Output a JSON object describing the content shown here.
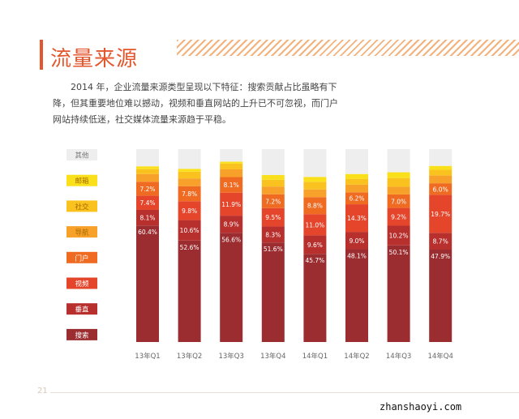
{
  "page": {
    "title": "流量来源",
    "description": "2014 年，企业流量来源类型呈现以下特征：搜索贡献占比虽略有下降，但其重要地位难以撼动，视频和垂直网站的上升已不可忽视，而门户网站持续低迷，社交媒体流量来源趋于平稳。",
    "page_number": "21",
    "watermark": "zhanshaoyi.com"
  },
  "chart_data": {
    "type": "bar",
    "stacked": true,
    "percent_stacked": true,
    "categories": [
      "13年Q1",
      "13年Q2",
      "13年Q3",
      "13年Q4",
      "14年Q1",
      "14年Q2",
      "14年Q3",
      "14年Q4"
    ],
    "series": [
      {
        "name": "搜索",
        "color": "#9b2d30",
        "values": [
          60.4,
          52.6,
          56.6,
          51.6,
          45.7,
          48.1,
          50.1,
          47.9
        ],
        "labels": [
          "60.4%",
          "52.6%",
          "56.6%",
          "51.6%",
          "45.7%",
          "48.1%",
          "50.1%",
          "47.9%"
        ]
      },
      {
        "name": "垂直",
        "color": "#b8302d",
        "values": [
          8.1,
          10.6,
          8.9,
          8.3,
          9.6,
          9.0,
          10.2,
          8.7
        ],
        "labels": [
          "8.1%",
          "10.6%",
          "8.9%",
          "8.3%",
          "9.6%",
          "9.0%",
          "10.2%",
          "8.7%"
        ]
      },
      {
        "name": "视频",
        "color": "#e4452b",
        "values": [
          7.4,
          9.8,
          11.9,
          9.5,
          11.0,
          14.3,
          9.2,
          19.7
        ],
        "labels": [
          "7.4%",
          "9.8%",
          "11.9%",
          "9.5%",
          "11.0%",
          "14.3%",
          "9.2%",
          "19.7%"
        ]
      },
      {
        "name": "门户",
        "color": "#f06b22",
        "values": [
          7.2,
          7.8,
          8.1,
          7.2,
          8.8,
          6.2,
          7.0,
          6.0
        ],
        "labels": [
          "7.2%",
          "7.8%",
          "8.1%",
          "7.2%",
          "8.8%",
          "6.2%",
          "7.0%",
          "6.0%"
        ]
      },
      {
        "name": "导航",
        "color": "#f7a12a",
        "values": [
          4.0,
          4.0,
          4.0,
          4.0,
          4.0,
          4.0,
          4.0,
          4.0
        ],
        "labels": []
      },
      {
        "name": "社交",
        "color": "#f9c21f",
        "values": [
          2.5,
          3.5,
          3.0,
          3.5,
          4.0,
          3.0,
          4.5,
          3.0
        ],
        "labels": []
      },
      {
        "name": "邮箱",
        "color": "#f9e01a",
        "values": [
          1.5,
          1.5,
          1.0,
          2.5,
          2.5,
          2.5,
          3.0,
          2.0
        ],
        "labels": []
      },
      {
        "name": "其他",
        "color": "#eeeeee",
        "values": [
          8.9,
          10.2,
          6.5,
          13.4,
          14.4,
          12.9,
          12.0,
          8.7
        ],
        "labels": []
      }
    ],
    "legend_order": [
      "其他",
      "邮箱",
      "社交",
      "导航",
      "门户",
      "视频",
      "垂直",
      "搜索"
    ],
    "legend_placement": "left",
    "ylim": [
      0,
      100
    ],
    "grid": false,
    "xlabel": "",
    "ylabel": ""
  }
}
